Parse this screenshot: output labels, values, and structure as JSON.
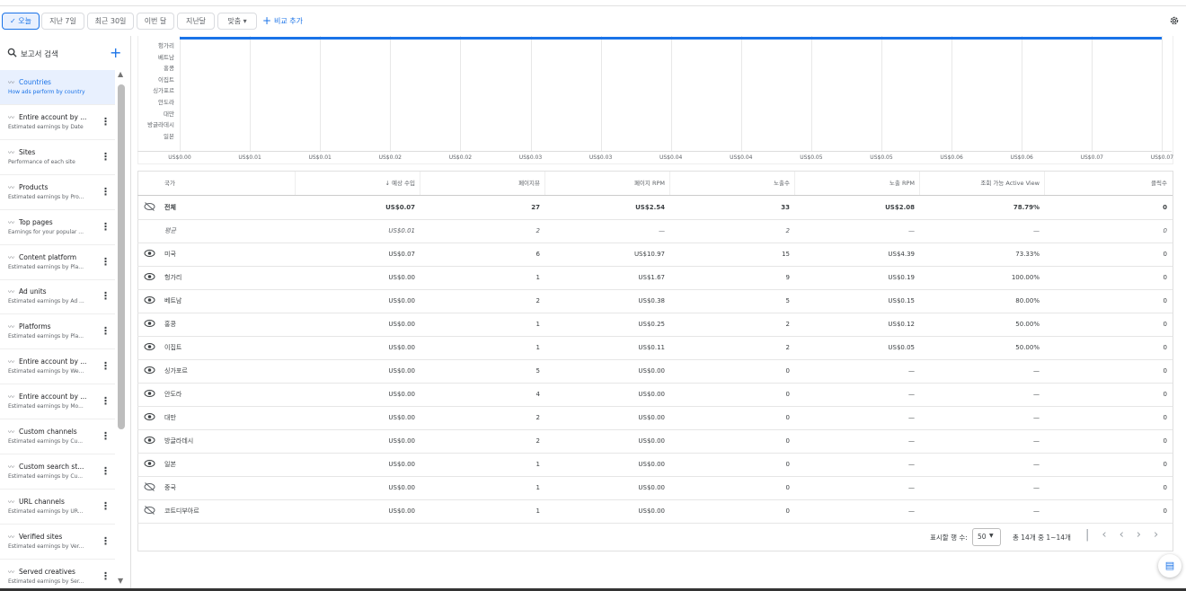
{
  "toolbar": {
    "ranges": [
      "오늘",
      "지난 7일",
      "최근 30일",
      "이번 달",
      "지난달",
      "맞춤"
    ],
    "compare": "비교 추가"
  },
  "sidebar": {
    "search": "보고서 검색",
    "reports": [
      {
        "title": "Countries",
        "subtitle": "How ads perform by country"
      },
      {
        "title": "Entire account by ...",
        "subtitle": "Estimated earnings by Date"
      },
      {
        "title": "Sites",
        "subtitle": "Performance of each site"
      },
      {
        "title": "Products",
        "subtitle": "Estimated earnings by Pro..."
      },
      {
        "title": "Top pages",
        "subtitle": "Earnings for your popular ..."
      },
      {
        "title": "Content platform",
        "subtitle": "Estimated earnings by Pla..."
      },
      {
        "title": "Ad units",
        "subtitle": "Estimated earnings by Ad ..."
      },
      {
        "title": "Platforms",
        "subtitle": "Estimated earnings by Pla..."
      },
      {
        "title": "Entire account by ...",
        "subtitle": "Estimated earnings by We..."
      },
      {
        "title": "Entire account by ...",
        "subtitle": "Estimated earnings by Mo..."
      },
      {
        "title": "Custom channels",
        "subtitle": "Estimated earnings by Cu..."
      },
      {
        "title": "Custom search st...",
        "subtitle": "Estimated earnings by Cu..."
      },
      {
        "title": "URL channels",
        "subtitle": "Estimated earnings by UR..."
      },
      {
        "title": "Verified sites",
        "subtitle": "Estimated earnings by Ver..."
      },
      {
        "title": "Served creatives",
        "subtitle": "Estimated earnings by Ser..."
      }
    ]
  },
  "chart": {
    "y_labels": [
      "헝가리",
      "베트남",
      "홍콩",
      "이집트",
      "싱가포르",
      "안도라",
      "대만",
      "방글라데시",
      "일본"
    ],
    "x_labels": [
      "US$0.00",
      "US$0.01",
      "US$0.01",
      "US$0.02",
      "US$0.02",
      "US$0.03",
      "US$0.03",
      "US$0.04",
      "US$0.04",
      "US$0.05",
      "US$0.05",
      "US$0.06",
      "US$0.06",
      "US$0.07",
      "US$0.07"
    ]
  },
  "table": {
    "headers": [
      "국가",
      "예상 수입",
      "페이지뷰",
      "페이지 RPM",
      "노출수",
      "노출 RPM",
      "조회 가능 Active View",
      "클릭수"
    ],
    "rows": [
      [
        "전체",
        "US$0.07",
        "27",
        "US$2.54",
        "33",
        "US$2.08",
        "78.79%",
        "0"
      ],
      [
        "평균",
        "US$0.01",
        "2",
        "—",
        "2",
        "—",
        "—",
        "0"
      ],
      [
        "미국",
        "US$0.07",
        "6",
        "US$10.97",
        "15",
        "US$4.39",
        "73.33%",
        "0"
      ],
      [
        "헝가리",
        "US$0.00",
        "1",
        "US$1.67",
        "9",
        "US$0.19",
        "100.00%",
        "0"
      ],
      [
        "베트남",
        "US$0.00",
        "2",
        "US$0.38",
        "5",
        "US$0.15",
        "80.00%",
        "0"
      ],
      [
        "홍콩",
        "US$0.00",
        "1",
        "US$0.25",
        "2",
        "US$0.12",
        "50.00%",
        "0"
      ],
      [
        "이집트",
        "US$0.00",
        "1",
        "US$0.11",
        "2",
        "US$0.05",
        "50.00%",
        "0"
      ],
      [
        "싱가포르",
        "US$0.00",
        "5",
        "US$0.00",
        "0",
        "—",
        "—",
        "0"
      ],
      [
        "안도라",
        "US$0.00",
        "4",
        "US$0.00",
        "0",
        "—",
        "—",
        "0"
      ],
      [
        "대만",
        "US$0.00",
        "2",
        "US$0.00",
        "0",
        "—",
        "—",
        "0"
      ],
      [
        "방글라데시",
        "US$0.00",
        "2",
        "US$0.00",
        "0",
        "—",
        "—",
        "0"
      ],
      [
        "일본",
        "US$0.00",
        "1",
        "US$0.00",
        "0",
        "—",
        "—",
        "0"
      ],
      [
        "중국",
        "US$0.00",
        "1",
        "US$0.00",
        "0",
        "—",
        "—",
        "0"
      ],
      [
        "코트디부아르",
        "US$0.00",
        "1",
        "US$0.00",
        "0",
        "—",
        "—",
        "0"
      ]
    ]
  },
  "pagination": {
    "rows_label": "표시할 행 수:",
    "rows_value": "50",
    "range": "총 14개 중 1~14개"
  }
}
